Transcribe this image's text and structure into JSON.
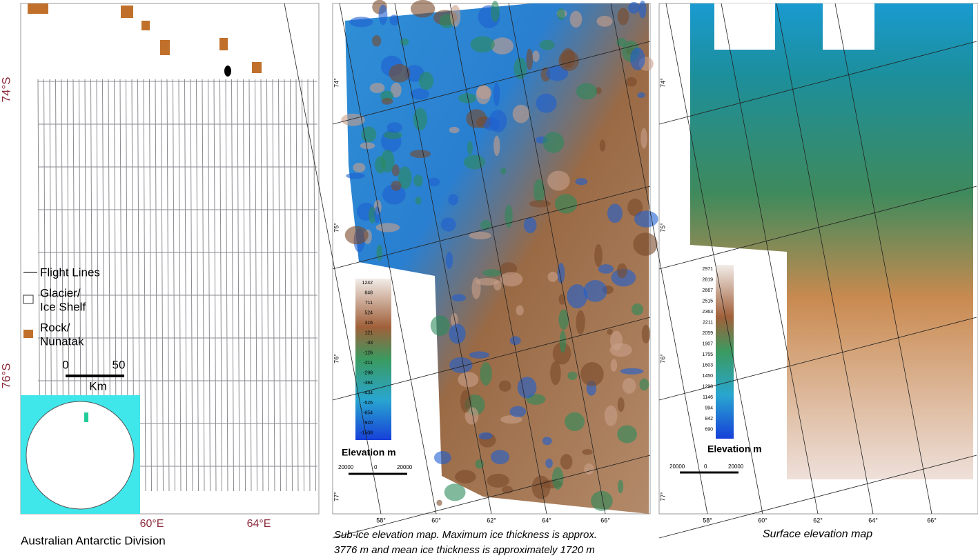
{
  "panels": [
    {
      "lat_labels": [
        "74°S",
        "76°S"
      ],
      "lon_labels": [
        "60°E",
        "64°E"
      ],
      "legend": [
        "Flight Lines",
        "Glacier/",
        "Ice Shelf",
        "Rock/",
        "Nunatak"
      ],
      "scale": [
        "0",
        "50",
        "Km"
      ],
      "credit": "Australian Antarctic Division"
    },
    {
      "colorbar": {
        "title": "Elevation m",
        "labels": [
          "1242",
          "848",
          "711",
          "524",
          "316",
          "121",
          "-33",
          "-126",
          "-211",
          "-298",
          "-384",
          "-434",
          "-526",
          "-654",
          "-920",
          "-1508"
        ]
      },
      "lat_labels": [
        "74°",
        "75°",
        "76°",
        "77°"
      ],
      "lon_labels": [
        "58°",
        "60°",
        "62°",
        "64°",
        "66°"
      ],
      "scale": [
        "20000",
        "0",
        "20000"
      ],
      "caption": [
        "Sub-ice elevation map. Maximum ice thickness is approx.",
        "3776 m and mean ice thickness is approximately 1720 m"
      ]
    },
    {
      "colorbar": {
        "title": "Elevation m",
        "labels": [
          "2971",
          "2819",
          "2667",
          "2515",
          "2363",
          "2211",
          "2059",
          "1907",
          "1755",
          "1603",
          "1450",
          "1298",
          "1146",
          "994",
          "842",
          "690"
        ]
      },
      "lat_labels": [
        "74°",
        "75°",
        "76°",
        "77°"
      ],
      "lon_labels": [
        "58°",
        "60°",
        "62°",
        "64°",
        "66°"
      ],
      "scale": [
        "20000",
        "0",
        "20000"
      ],
      "caption": "Surface elevation map"
    }
  ]
}
